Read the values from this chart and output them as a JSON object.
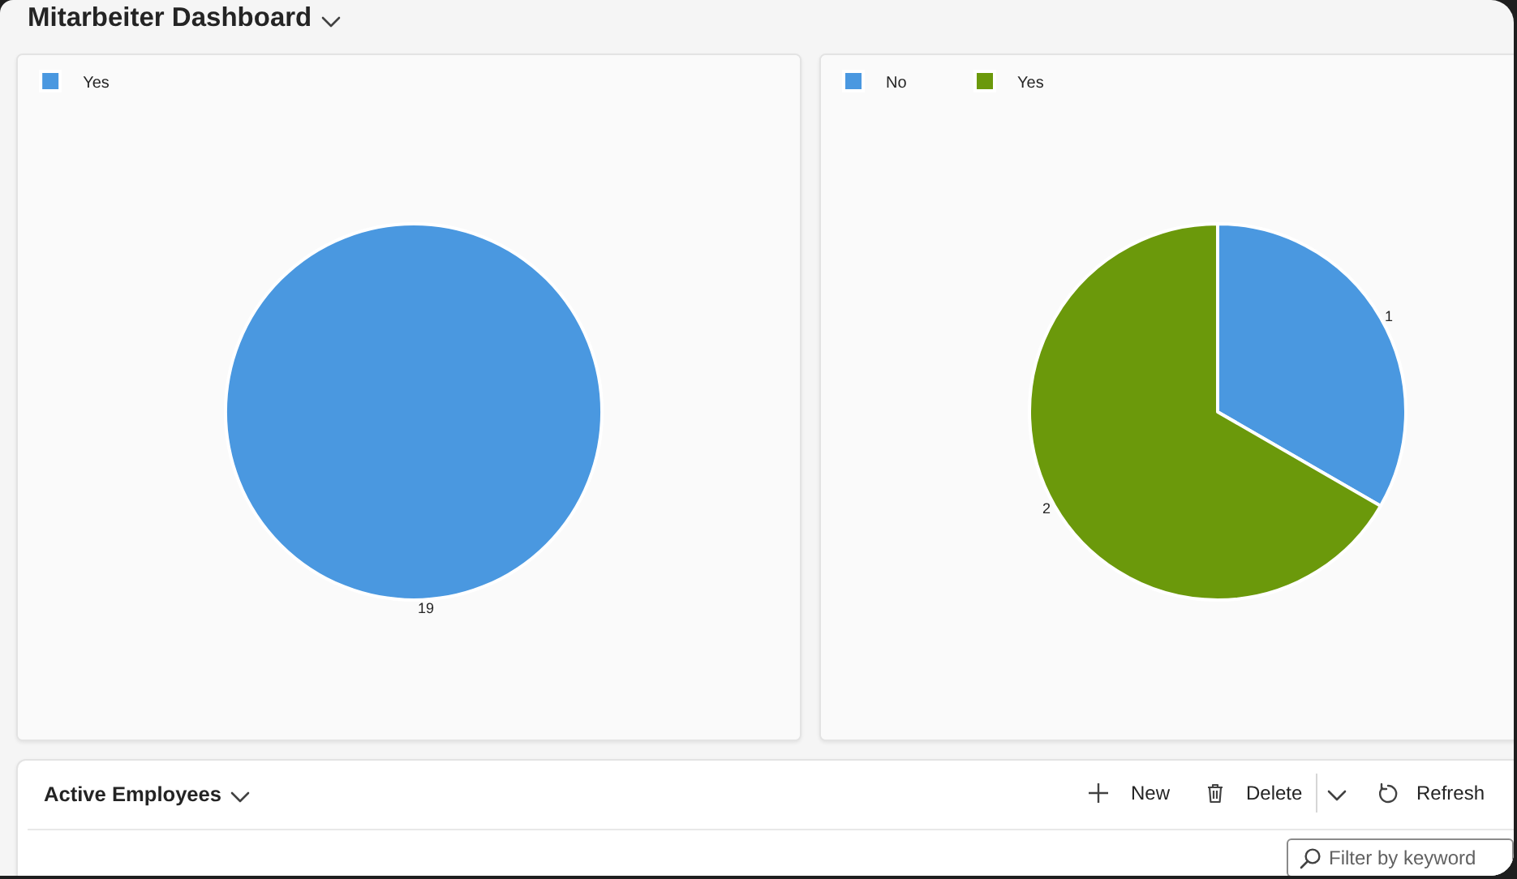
{
  "chart_data": [
    {
      "type": "other",
      "title": "Mitarbeiter Dashboard"
    },
    {
      "type": "pie",
      "categories": [
        "Yes"
      ],
      "values": [
        19
      ],
      "colors": [
        "#4a98e0"
      ],
      "data_labels": true,
      "legend": "top left"
    },
    {
      "type": "pie",
      "categories": [
        "No",
        "Yes"
      ],
      "values": [
        1,
        2
      ],
      "colors": [
        "#4a98e0",
        "#6b990b"
      ],
      "data_labels": true,
      "legend": "top left"
    },
    {
      "type": "other",
      "title": "Active Employees",
      "annotations": [
        "New",
        "Delete",
        "Refresh",
        "Filter by keyword"
      ]
    }
  ]
}
